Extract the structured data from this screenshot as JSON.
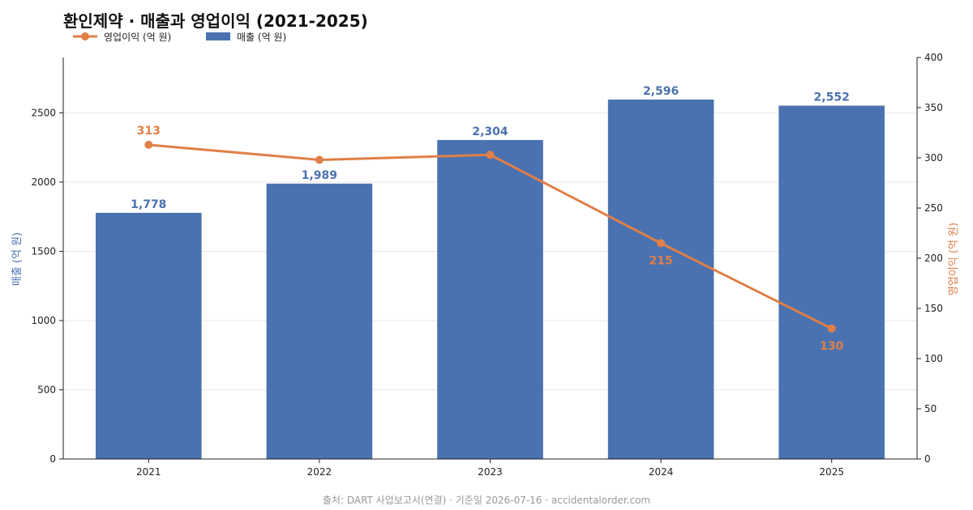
{
  "chart_data": {
    "type": "bar",
    "title": "환인제약 · 매출과 영업이익 (2021-2025)",
    "categories": [
      "2021",
      "2022",
      "2023",
      "2024",
      "2025"
    ],
    "series": [
      {
        "name": "매출 (억 원)",
        "type": "bar",
        "axis": "left",
        "color": "#4a72b0",
        "values": [
          1778,
          1989,
          2304,
          2596,
          2552
        ],
        "labels": [
          "1,778",
          "1,989",
          "2,304",
          "2,596",
          "2,552"
        ]
      },
      {
        "name": "영업이익 (억 원)",
        "type": "line",
        "axis": "right",
        "color": "#e07f47",
        "values": [
          313,
          298,
          303,
          215,
          130
        ],
        "labels": [
          "313",
          "",
          "",
          "215",
          "130"
        ]
      }
    ],
    "ylabel_left": "매출 (억 원)",
    "ylabel_right": "영업이익 (억 원)",
    "ylim_left": [
      0,
      2900
    ],
    "yticks_left": [
      "0",
      "500",
      "1000",
      "1500",
      "2000",
      "2500"
    ],
    "ylim_right": [
      0,
      400
    ],
    "yticks_right": [
      "0",
      "50",
      "100",
      "150",
      "200",
      "250",
      "300",
      "350",
      "400"
    ],
    "grid": "horizontal",
    "legend": "top-left",
    "source": "출처: DART 사업보고서(연결) · 기준일 2026-07-16 · accidentalorder.com"
  }
}
